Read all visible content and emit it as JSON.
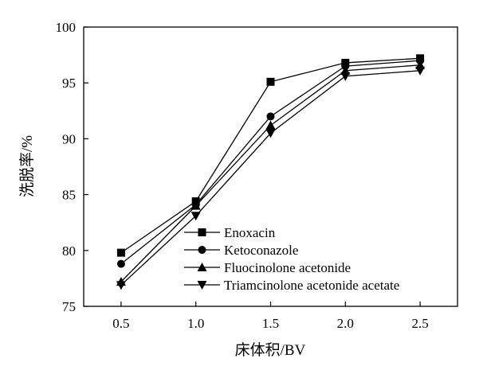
{
  "chart_data": {
    "type": "line",
    "xlabel": "床体积/BV",
    "ylabel": "洗脱率/%",
    "xlim": [
      0.25,
      2.75
    ],
    "ylim": [
      75,
      100
    ],
    "x_ticks": [
      "0.5",
      "1.0",
      "1.5",
      "2.0",
      "2.5"
    ],
    "y_ticks": [
      "75",
      "80",
      "85",
      "90",
      "95",
      "100"
    ],
    "x": [
      0.5,
      1.0,
      1.5,
      2.0,
      2.5
    ],
    "grid": false,
    "legend_position": "center-right",
    "series": [
      {
        "name": "Enoxacin",
        "marker": "square",
        "values": [
          79.8,
          84.4,
          95.1,
          96.8,
          97.2
        ]
      },
      {
        "name": "Ketoconazole",
        "marker": "circle",
        "values": [
          78.8,
          84.1,
          92.0,
          96.5,
          97.0
        ]
      },
      {
        "name": "Fluocinolone acetonide",
        "marker": "triangle-up",
        "values": [
          77.2,
          84.0,
          91.2,
          96.1,
          96.6
        ]
      },
      {
        "name": "Triamcinolone acetonide acetate",
        "marker": "triangle-down",
        "values": [
          76.9,
          83.1,
          90.5,
          95.6,
          96.1
        ]
      }
    ]
  }
}
